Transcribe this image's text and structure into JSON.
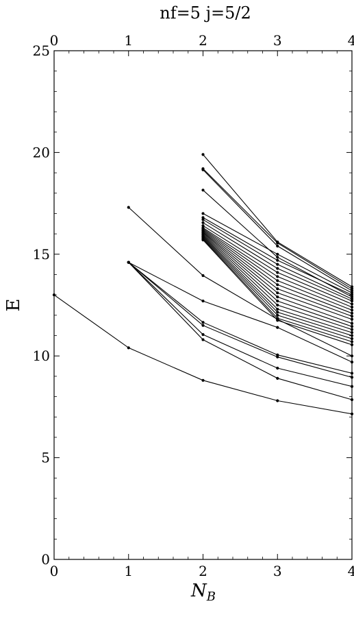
{
  "chart_data": {
    "type": "line",
    "title": "nf=5   j=5/2",
    "xlabel": "N",
    "xlabel_sub": "B",
    "ylabel": "E",
    "xlim": [
      0,
      4
    ],
    "ylim": [
      0,
      25
    ],
    "x_ticks": [
      0,
      1,
      2,
      3,
      4
    ],
    "y_ticks": [
      0,
      5,
      10,
      15,
      20,
      25
    ],
    "top_axis_ticks": [
      0,
      1,
      2,
      3,
      4
    ],
    "grid": false,
    "series_color": "#000000",
    "series": [
      {
        "x": [
          0,
          1,
          2,
          3,
          4
        ],
        "y": [
          13.0,
          10.4,
          8.8,
          7.8,
          7.15
        ]
      },
      {
        "x": [
          1,
          2,
          3,
          4
        ],
        "y": [
          14.6,
          10.8,
          8.9,
          7.85
        ]
      },
      {
        "x": [
          1,
          2,
          3,
          4
        ],
        "y": [
          14.6,
          11.05,
          9.4,
          8.5
        ]
      },
      {
        "x": [
          1,
          2,
          3,
          4
        ],
        "y": [
          14.6,
          11.5,
          9.95,
          8.95
        ]
      },
      {
        "x": [
          1,
          2,
          3,
          4
        ],
        "y": [
          14.6,
          11.65,
          10.05,
          9.15
        ]
      },
      {
        "x": [
          1,
          2,
          3,
          4
        ],
        "y": [
          14.6,
          12.7,
          11.4,
          9.7
        ]
      },
      {
        "x": [
          1,
          2,
          3,
          4
        ],
        "y": [
          17.3,
          13.95,
          11.8,
          10.0
        ]
      },
      {
        "x": [
          2,
          3,
          4
        ],
        "y": [
          19.9,
          15.6,
          13.4
        ]
      },
      {
        "x": [
          2,
          3,
          4
        ],
        "y": [
          19.2,
          15.55,
          13.3
        ]
      },
      {
        "x": [
          2,
          3,
          4
        ],
        "y": [
          19.15,
          15.4,
          13.2
        ]
      },
      {
        "x": [
          2,
          3,
          4
        ],
        "y": [
          18.15,
          14.85,
          12.9
        ]
      },
      {
        "x": [
          2,
          3,
          4
        ],
        "y": [
          17.0,
          15.0,
          13.1
        ]
      },
      {
        "x": [
          2,
          3,
          4
        ],
        "y": [
          16.8,
          14.7,
          13.0
        ]
      },
      {
        "x": [
          2,
          3,
          4
        ],
        "y": [
          16.7,
          14.5,
          12.8
        ]
      },
      {
        "x": [
          2,
          3,
          4
        ],
        "y": [
          16.55,
          14.3,
          12.7
        ]
      },
      {
        "x": [
          2,
          3,
          4
        ],
        "y": [
          16.4,
          14.1,
          12.55
        ]
      },
      {
        "x": [
          2,
          3,
          4
        ],
        "y": [
          16.3,
          13.9,
          12.4
        ]
      },
      {
        "x": [
          2,
          3,
          4
        ],
        "y": [
          16.25,
          13.7,
          12.25
        ]
      },
      {
        "x": [
          2,
          3,
          4
        ],
        "y": [
          16.2,
          13.5,
          12.1
        ]
      },
      {
        "x": [
          2,
          3,
          4
        ],
        "y": [
          16.15,
          13.3,
          11.95
        ]
      },
      {
        "x": [
          2,
          3,
          4
        ],
        "y": [
          16.1,
          13.1,
          11.8
        ]
      },
      {
        "x": [
          2,
          3,
          4
        ],
        "y": [
          16.05,
          12.9,
          11.6
        ]
      },
      {
        "x": [
          2,
          3,
          4
        ],
        "y": [
          16.0,
          12.7,
          11.45
        ]
      },
      {
        "x": [
          2,
          3,
          4
        ],
        "y": [
          15.95,
          12.5,
          11.3
        ]
      },
      {
        "x": [
          2,
          3,
          4
        ],
        "y": [
          15.9,
          12.3,
          11.15
        ]
      },
      {
        "x": [
          2,
          3,
          4
        ],
        "y": [
          15.85,
          12.15,
          11.0
        ]
      },
      {
        "x": [
          2,
          3,
          4
        ],
        "y": [
          15.8,
          12.0,
          10.85
        ]
      },
      {
        "x": [
          2,
          3,
          4
        ],
        "y": [
          15.75,
          11.85,
          10.7
        ]
      },
      {
        "x": [
          2,
          3,
          4
        ],
        "y": [
          15.7,
          11.75,
          10.55
        ]
      }
    ]
  }
}
